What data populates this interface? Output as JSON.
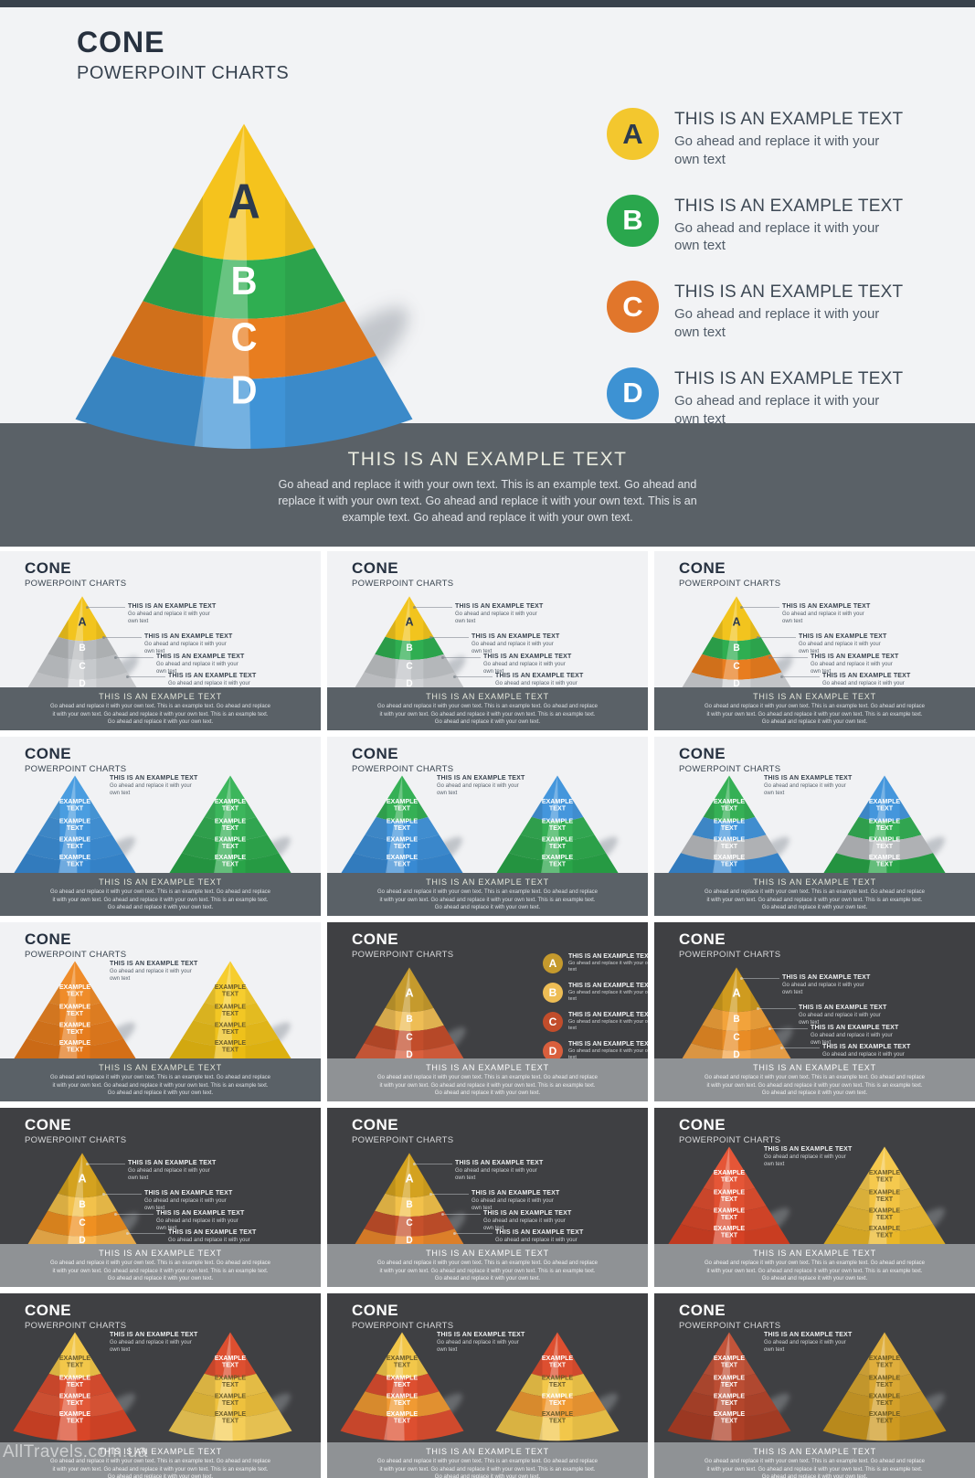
{
  "page": {
    "watermark": "AllTravels.com.ua"
  },
  "strings": {
    "title": "CONE",
    "subtitle": "POWERPOINT CHARTS",
    "example_heading": "THIS IS AN EXAMPLE TEXT",
    "example_body": "Go ahead and replace it with your own text",
    "band_heading": "THIS IS AN EXAMPLE TEXT",
    "band_body": "Go ahead and replace it with your own text. This is an example text. Go ahead and replace it with your own text. Go ahead and replace it with your own text. This is an example text. Go ahead and replace it with your own text.",
    "segment_label_line1": "EXAMPLE",
    "segment_label_line2": "TEXT"
  },
  "hero": {
    "cone": {
      "colors": [
        "#f5c31d",
        "#2fae51",
        "#e87d1f",
        "#3f93d6"
      ],
      "letters": [
        "A",
        "B",
        "C",
        "D"
      ],
      "letter_colors": [
        "#2c3a4e",
        "#ffffff",
        "#ffffff",
        "#ffffff"
      ]
    },
    "legend": [
      {
        "letter": "A",
        "color": "#f3c72e",
        "letter_color": "#2c3a4e"
      },
      {
        "letter": "B",
        "color": "#2aa74d",
        "letter_color": "#ffffff"
      },
      {
        "letter": "C",
        "color": "#e1762b",
        "letter_color": "#ffffff"
      },
      {
        "letter": "D",
        "color": "#3d92d3",
        "letter_color": "#ffffff"
      }
    ]
  },
  "thumbnails": [
    {
      "variant": "callouts",
      "theme": "light",
      "cone": {
        "colors": [
          "#f2c41e",
          "#b7babd",
          "#c6c9cc",
          "#d3d5d8"
        ],
        "letters": [
          "A",
          "B",
          "C",
          "D"
        ],
        "letter_colors": [
          "#2c3a4e",
          "#ffffff",
          "#ffffff",
          "#ffffff"
        ]
      }
    },
    {
      "variant": "callouts",
      "theme": "light",
      "cone": {
        "colors": [
          "#f2c41e",
          "#2fae51",
          "#c0c3c6",
          "#d0d2d5"
        ],
        "letters": [
          "A",
          "B",
          "C",
          "D"
        ],
        "letter_colors": [
          "#2c3a4e",
          "#ffffff",
          "#ffffff",
          "#ffffff"
        ]
      }
    },
    {
      "variant": "callouts",
      "theme": "light",
      "cone": {
        "colors": [
          "#f2c41e",
          "#2fae51",
          "#e87d1f",
          "#cfd1d4"
        ],
        "letters": [
          "A",
          "B",
          "C",
          "D"
        ],
        "letter_colors": [
          "#2c3a4e",
          "#ffffff",
          "#ffffff",
          "#ffffff"
        ]
      }
    },
    {
      "variant": "two",
      "theme": "light",
      "cones": [
        {
          "colors": [
            "#4a9de0",
            "#4496dc",
            "#3e90d8",
            "#388ad3"
          ],
          "text_colors": [
            "#ffffff",
            "#ffffff",
            "#ffffff",
            "#ffffff"
          ]
        },
        {
          "colors": [
            "#3cb65c",
            "#35b055",
            "#2faa4e",
            "#29a448"
          ],
          "text_colors": [
            "#ffffff",
            "#ffffff",
            "#ffffff",
            "#ffffff"
          ]
        }
      ]
    },
    {
      "variant": "two",
      "theme": "light",
      "cones": [
        {
          "colors": [
            "#35b055",
            "#4496dc",
            "#3e90d8",
            "#388ad3"
          ],
          "text_colors": [
            "#ffffff",
            "#ffffff",
            "#ffffff",
            "#ffffff"
          ]
        },
        {
          "colors": [
            "#4496dc",
            "#35b055",
            "#2faa4e",
            "#29a448"
          ],
          "text_colors": [
            "#ffffff",
            "#ffffff",
            "#ffffff",
            "#ffffff"
          ]
        }
      ]
    },
    {
      "variant": "two",
      "theme": "light",
      "cones": [
        {
          "colors": [
            "#35b055",
            "#4496dc",
            "#babdc0",
            "#388ad3"
          ],
          "text_colors": [
            "#ffffff",
            "#ffffff",
            "#ffffff",
            "#ffffff"
          ]
        },
        {
          "colors": [
            "#4496dc",
            "#35b055",
            "#babdc0",
            "#29a448"
          ],
          "text_colors": [
            "#ffffff",
            "#ffffff",
            "#ffffff",
            "#ffffff"
          ]
        }
      ]
    },
    {
      "variant": "two",
      "theme": "light",
      "cones": [
        {
          "colors": [
            "#ef8c2a",
            "#ea8424",
            "#e67d1e",
            "#e27619"
          ],
          "text_colors": [
            "#ffffff",
            "#ffffff",
            "#ffffff",
            "#ffffff"
          ]
        },
        {
          "colors": [
            "#f6cd2e",
            "#f2c724",
            "#eec11b",
            "#eabb12"
          ],
          "text_colors": [
            "#6b5c2a",
            "#6b5c2a",
            "#6b5c2a",
            "#6b5c2a"
          ]
        }
      ]
    },
    {
      "variant": "legend",
      "theme": "dark",
      "cone": {
        "colors": [
          "#c59a2d",
          "#eebd55",
          "#c24d2b",
          "#d95f3d"
        ],
        "letters": [
          "A",
          "B",
          "C",
          "D"
        ],
        "letter_colors": [
          "#ffffff",
          "#ffffff",
          "#ffffff",
          "#ffffff"
        ]
      },
      "legend": [
        {
          "letter": "A",
          "color": "#c59a2d"
        },
        {
          "letter": "B",
          "color": "#eebd55"
        },
        {
          "letter": "C",
          "color": "#c24d2b"
        },
        {
          "letter": "D",
          "color": "#d95f3d"
        }
      ]
    },
    {
      "variant": "callouts",
      "theme": "dark",
      "cone": {
        "colors": [
          "#cf9b1f",
          "#f2a33b",
          "#e98c25",
          "#f3a64a"
        ],
        "letters": [
          "A",
          "B",
          "C",
          "D"
        ],
        "letter_colors": [
          "#ffffff",
          "#ffffff",
          "#ffffff",
          "#ffffff"
        ]
      }
    },
    {
      "variant": "callouts",
      "theme": "dark",
      "cone": {
        "colors": [
          "#d4a21f",
          "#f2c14b",
          "#ef9021",
          "#f6b44d"
        ],
        "letters": [
          "A",
          "B",
          "C",
          "D"
        ],
        "letter_colors": [
          "#ffffff",
          "#ffffff",
          "#ffffff",
          "#ffffff"
        ]
      }
    },
    {
      "variant": "callouts",
      "theme": "dark",
      "cone": {
        "colors": [
          "#d4a21f",
          "#f2c14b",
          "#c5502b",
          "#ea872c"
        ],
        "letters": [
          "A",
          "B",
          "C",
          "D"
        ],
        "letter_colors": [
          "#ffffff",
          "#ffffff",
          "#ffffff",
          "#ffffff"
        ]
      }
    },
    {
      "variant": "two",
      "theme": "dark",
      "cones": [
        {
          "colors": [
            "#e55637",
            "#e04f30",
            "#db482a",
            "#d64124"
          ],
          "text_colors": [
            "#ffffff",
            "#ffffff",
            "#ffffff",
            "#ffffff"
          ]
        },
        {
          "colors": [
            "#f5c94e",
            "#f2c341",
            "#eebd35",
            "#eab728"
          ],
          "text_colors": [
            "#6b5c2a",
            "#6b5c2a",
            "#6b5c2a",
            "#6b5c2a"
          ]
        }
      ]
    },
    {
      "variant": "two",
      "theme": "dark",
      "cones": [
        {
          "colors": [
            "#f2c74a",
            "#dd4f30",
            "#e25838",
            "#d84628"
          ],
          "text_colors": [
            "#6b5c2a",
            "#ffffff",
            "#ffffff",
            "#ffffff"
          ]
        },
        {
          "colors": [
            "#dd4f30",
            "#f2c74a",
            "#eec13d",
            "#f4cd57"
          ],
          "text_colors": [
            "#ffffff",
            "#6b5c2a",
            "#6b5c2a",
            "#6b5c2a"
          ]
        }
      ]
    },
    {
      "variant": "two",
      "theme": "dark",
      "cones": [
        {
          "colors": [
            "#f2c74a",
            "#dd4f30",
            "#f09a33",
            "#dd4f30"
          ],
          "text_colors": [
            "#6b5c2a",
            "#ffffff",
            "#ffffff",
            "#ffffff"
          ]
        },
        {
          "colors": [
            "#dd4f30",
            "#f2c74a",
            "#f09a33",
            "#f2c74a"
          ],
          "text_colors": [
            "#ffffff",
            "#6b5c2a",
            "#ffffff",
            "#6b5c2a"
          ]
        }
      ]
    },
    {
      "variant": "two",
      "theme": "dark",
      "cones": [
        {
          "colors": [
            "#c2543a",
            "#bb4d33",
            "#b4462c",
            "#ad3f26"
          ],
          "text_colors": [
            "#ffffff",
            "#ffffff",
            "#ffffff",
            "#ffffff"
          ]
        },
        {
          "colors": [
            "#dfae3c",
            "#d9a732",
            "#d3a029",
            "#cd9920"
          ],
          "text_colors": [
            "#6d5a20",
            "#6d5a20",
            "#6d5a20",
            "#6d5a20"
          ]
        }
      ]
    }
  ]
}
